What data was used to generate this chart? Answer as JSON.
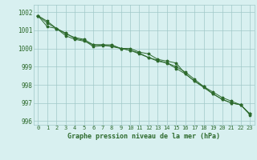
{
  "title": "Graphe pression niveau de la mer (hPa)",
  "x": [
    0,
    1,
    2,
    3,
    4,
    5,
    6,
    7,
    8,
    9,
    10,
    11,
    12,
    13,
    14,
    15,
    16,
    17,
    18,
    19,
    20,
    21,
    22,
    23
  ],
  "line1": [
    1001.8,
    1001.2,
    1001.1,
    1000.7,
    1000.5,
    1000.4,
    1000.2,
    1000.2,
    1000.1,
    1000.0,
    1000.0,
    999.8,
    999.7,
    999.4,
    999.3,
    999.2,
    998.6,
    998.2,
    997.9,
    997.5,
    997.2,
    997.0,
    996.9,
    996.4
  ],
  "line2": [
    1001.8,
    1001.4,
    1001.1,
    1000.8,
    1000.6,
    1000.5,
    1000.2,
    1000.2,
    1000.2,
    1000.0,
    999.9,
    999.75,
    999.5,
    999.35,
    999.2,
    999.0,
    998.7,
    998.3,
    997.9,
    997.6,
    997.3,
    997.1,
    996.9,
    996.4
  ],
  "line3": [
    1001.8,
    1001.5,
    1001.1,
    1000.85,
    1000.55,
    1000.45,
    1000.1,
    1000.15,
    1000.15,
    1000.0,
    999.9,
    999.7,
    999.5,
    999.3,
    999.2,
    998.9,
    998.6,
    998.2,
    997.85,
    997.5,
    997.2,
    997.0,
    996.9,
    996.35
  ],
  "line_color": "#2d6a2d",
  "bg_color": "#d8f0f0",
  "grid_color": "#a0c8c8",
  "title_color": "#2d6a2d",
  "ylim_min": 995.8,
  "ylim_max": 1002.4,
  "yticks": [
    996,
    997,
    998,
    999,
    1000,
    1001,
    1002
  ]
}
